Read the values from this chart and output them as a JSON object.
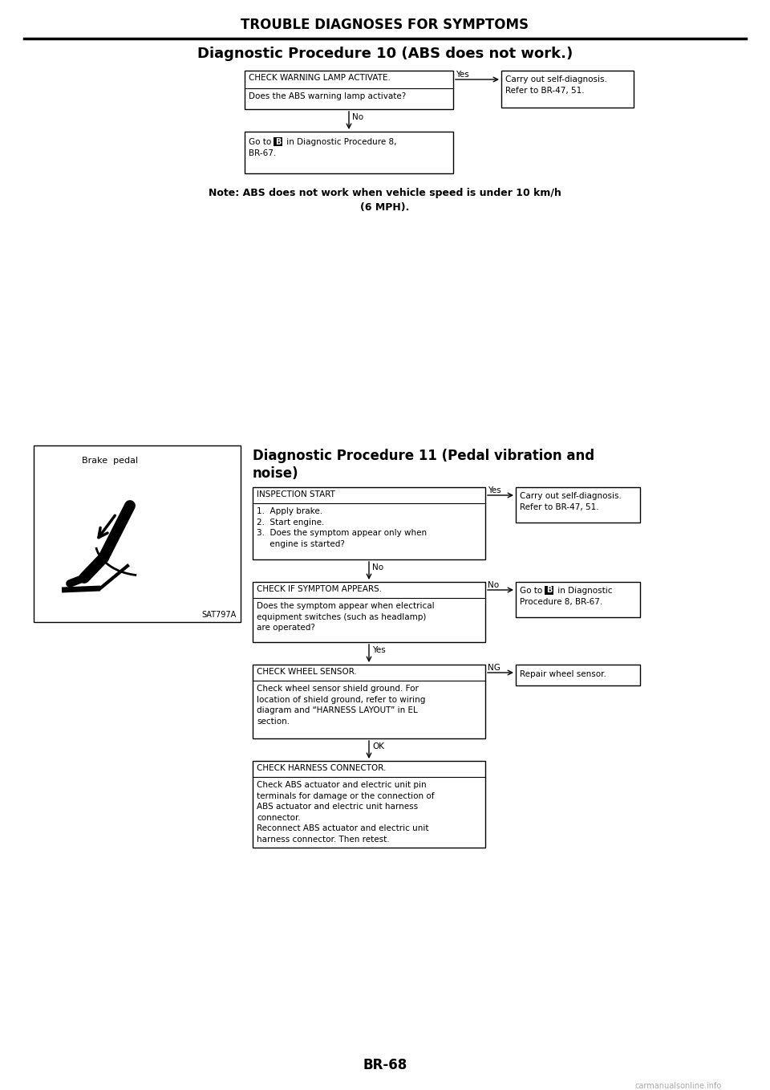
{
  "page_title": "TROUBLE DIAGNOSES FOR SYMPTOMS",
  "page_number": "BR-68",
  "bg_color": "#ffffff",
  "text_color": "#000000",
  "diag10": {
    "title": "Diagnostic Procedure 10 (ABS does not work.)",
    "box1_title": "CHECK WARNING LAMP ACTIVATE.",
    "box1_body": "Does the ABS warning lamp activate?",
    "box1_yes_label": "Yes",
    "box1_yes_text": "Carry out self-diagnosis.\nRefer to BR-47, 51.",
    "box1_no_label": "No",
    "box2_text_pre": "Go to ",
    "box2_text_post": " in Diagnostic Procedure 8,",
    "box2_text_line2": "BR-67.",
    "note": "Note: ABS does not work when vehicle speed is under 10 km/h\n(6 MPH)."
  },
  "diag11": {
    "title": "Diagnostic Procedure 11 (Pedal vibration and\nnoise)",
    "image_label": "Brake  pedal",
    "image_ref": "SAT797A",
    "box1_title": "INSPECTION START",
    "box1_body": "1.  Apply brake.\n2.  Start engine.\n3.  Does the symptom appear only when\n     engine is started?",
    "box1_yes_label": "Yes",
    "box1_yes_text": "Carry out self-diagnosis.\nRefer to BR-47, 51.",
    "box1_no_label": "No",
    "box2_title": "CHECK IF SYMPTOM APPEARS.",
    "box2_body": "Does the symptom appear when electrical\nequipment switches (such as headlamp)\nare operated?",
    "box2_no_label": "No",
    "box2_yes_label": "Yes",
    "box3_title": "CHECK WHEEL SENSOR.",
    "box3_body": "Check wheel sensor shield ground. For\nlocation of shield ground, refer to wiring\ndiagram and “HARNESS LAYOUT” in EL\nsection.",
    "box3_ng_label": "NG",
    "box3_ng_text": "Repair wheel sensor.",
    "box3_ok_label": "OK",
    "box4_title": "CHECK HARNESS CONNECTOR.",
    "box4_body": "Check ABS actuator and electric unit pin\nterminals for damage or the connection of\nABS actuator and electric unit harness\nconnector.\nReconnect ABS actuator and electric unit\nharness connector. Then retest."
  }
}
